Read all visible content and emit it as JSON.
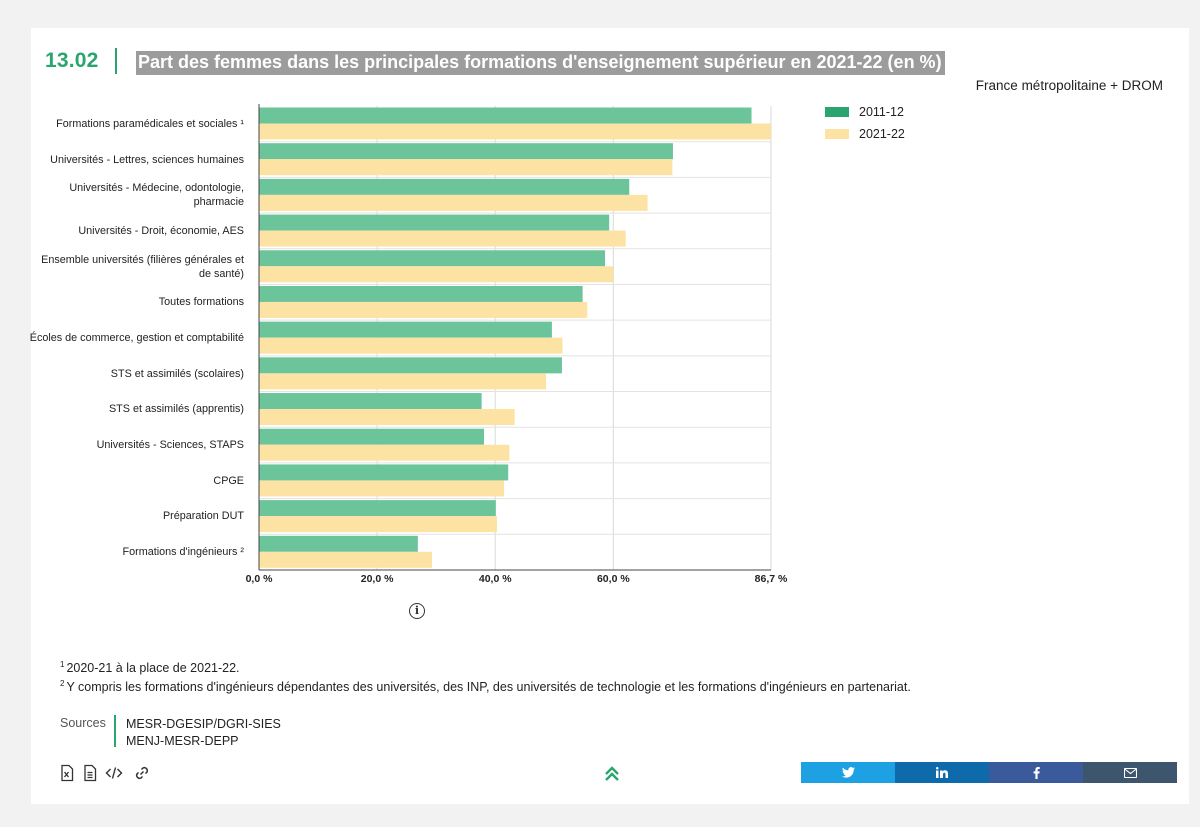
{
  "figure": {
    "number": "13.02",
    "title": "Part des femmes dans les principales formations d'enseignement supérieur en 2021-22 (en %)",
    "scope": "France métropolitaine + DROM"
  },
  "chart_data": {
    "type": "bar",
    "orientation": "horizontal",
    "categories": [
      "Formations paramédicales et sociales ¹",
      "Universités - Lettres, sciences humaines",
      "Universités - Médecine, odontologie, pharmacie",
      "Universités - Droit, économie, AES",
      "Ensemble universités (filières générales et de santé)",
      "Toutes formations",
      "Écoles de commerce, gestion et comptabilité",
      "STS et assimilés (scolaires)",
      "STS et assimilés (apprentis)",
      "Universités - Sciences, STAPS",
      "CPGE",
      "Préparation DUT",
      "Formations d'ingénieurs ²"
    ],
    "series": [
      {
        "name": "2011-12",
        "color": "#6cc49a",
        "values": [
          83.4,
          70.1,
          62.7,
          59.3,
          58.6,
          54.8,
          49.6,
          51.3,
          37.7,
          38.1,
          42.2,
          40.1,
          26.9
        ]
      },
      {
        "name": "2021-22",
        "color": "#fde3a3",
        "values": [
          86.7,
          70.0,
          65.8,
          62.1,
          60.0,
          55.6,
          51.4,
          48.6,
          43.3,
          42.4,
          41.5,
          40.3,
          29.3
        ]
      }
    ],
    "xlim": [
      0,
      86.7
    ],
    "xticks": [
      {
        "value": 0,
        "label": "0,0 %"
      },
      {
        "value": 20,
        "label": "20,0 %"
      },
      {
        "value": 40,
        "label": "40,0 %"
      },
      {
        "value": 60,
        "label": "60,0 %"
      },
      {
        "value": 86.7,
        "label": "86,7 %"
      }
    ],
    "grid": true,
    "legend_position": "top-right"
  },
  "footnotes": [
    {
      "mark": "1",
      "text": "2020-21 à la place de 2021-22."
    },
    {
      "mark": "2",
      "text": "Y compris les formations d'ingénieurs dépendantes des universités, des INP, des universités de technologie et les formations d'ingénieurs en partenariat."
    }
  ],
  "sources": {
    "label": "Sources",
    "items": [
      "MESR-DGESIP/DGRI-SIES",
      "MENJ-MESR-DEPP"
    ]
  },
  "tools": [
    "excel-file-icon",
    "document-icon",
    "code-embed-icon",
    "link-icon"
  ],
  "share": [
    {
      "name": "twitter",
      "color": "#1da1e3"
    },
    {
      "name": "linkedin",
      "color": "#0f6aab"
    },
    {
      "name": "facebook",
      "color": "#3a5a9c"
    },
    {
      "name": "email",
      "color": "#3d566e"
    }
  ]
}
